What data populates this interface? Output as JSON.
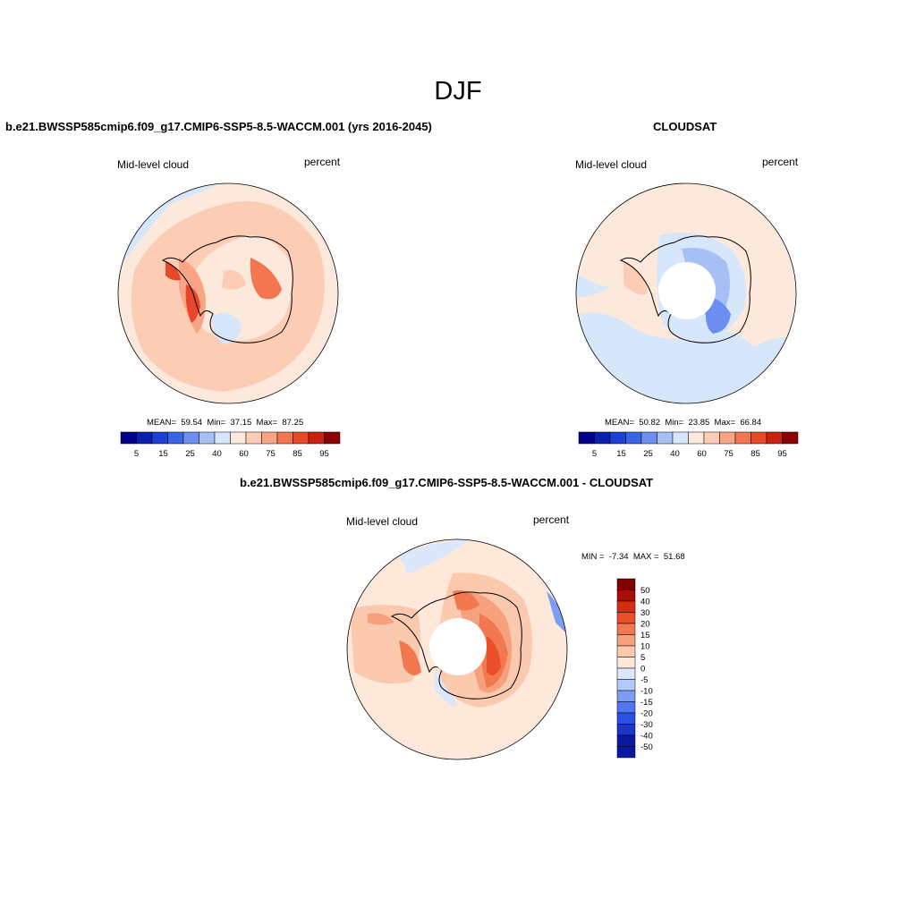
{
  "figure": {
    "title": "DJF"
  },
  "colors": {
    "palette": [
      "#00008b",
      "#0a1fb4",
      "#1d3fd6",
      "#3a63e6",
      "#6b8ef0",
      "#a6c0f6",
      "#d6e6fb",
      "#fde9dc",
      "#fcccb4",
      "#f9a585",
      "#f47651",
      "#e8472a",
      "#c8230f",
      "#8b0000"
    ],
    "diff_palette": [
      "#0a1a9e",
      "#1a35c8",
      "#2a52e0",
      "#5076f0",
      "#7d9cf4",
      "#b3cbf8",
      "#dbe8fb",
      "#fde8da",
      "#fbc9ad",
      "#f7a07d",
      "#f2784f",
      "#e94f29",
      "#d42d10",
      "#a50f06",
      "#7e0000"
    ]
  },
  "chart_data": [
    {
      "type": "heatmap",
      "projection": "south-polar-stereographic",
      "title": "b.e21.BWSSP585cmip6.f09_g17.CMIP6-SSP5-8.5-WACCM.001 (yrs 2016-2045)",
      "left_label": "Mid-level cloud",
      "right_label": "percent",
      "stats": {
        "mean_label": "MEAN=",
        "mean": "59.54",
        "min_label": "Min=",
        "min": "37.15",
        "max_label": "Max=",
        "max": "87.25"
      },
      "colorbar_levels": [
        "5",
        "15",
        "25",
        "40",
        "60",
        "75",
        "85",
        "95"
      ],
      "colorbar_orientation": "horizontal",
      "value_range": [
        0,
        100
      ]
    },
    {
      "type": "heatmap",
      "projection": "south-polar-stereographic",
      "title": "CLOUDSAT",
      "left_label": "Mid-level cloud",
      "right_label": "percent",
      "stats": {
        "mean_label": "MEAN=",
        "mean": "50.82",
        "min_label": "Min=",
        "min": "23.85",
        "max_label": "Max=",
        "max": "66.84"
      },
      "colorbar_levels": [
        "5",
        "15",
        "25",
        "40",
        "60",
        "75",
        "85",
        "95"
      ],
      "colorbar_orientation": "horizontal",
      "value_range": [
        0,
        100
      ]
    },
    {
      "type": "heatmap",
      "projection": "south-polar-stereographic",
      "title": "b.e21.BWSSP585cmip6.f09_g17.CMIP6-SSP5-8.5-WACCM.001 - CLOUDSAT",
      "left_label": "Mid-level cloud",
      "right_label": "percent",
      "stats": {
        "min_label": "MIN =",
        "min": "-7.34",
        "max_label": "MAX =",
        "max": "51.68"
      },
      "colorbar_levels": [
        "50",
        "40",
        "30",
        "20",
        "15",
        "10",
        "5",
        "0",
        "-5",
        "-10",
        "-15",
        "-20",
        "-30",
        "-40",
        "-50"
      ],
      "colorbar_orientation": "vertical",
      "value_range": [
        -60,
        60
      ]
    }
  ]
}
